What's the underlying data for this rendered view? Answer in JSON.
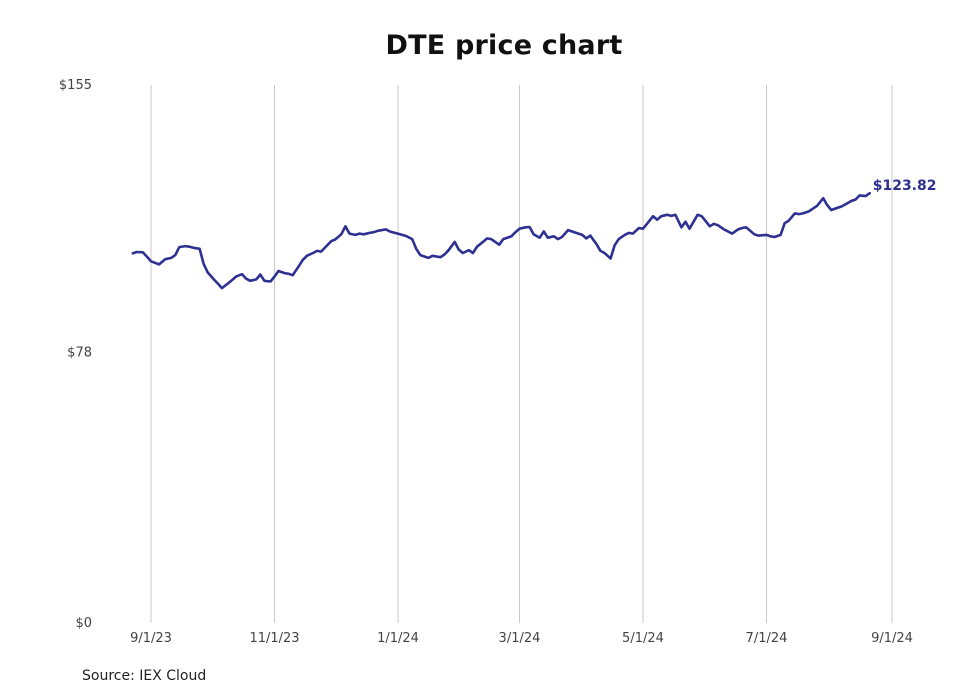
{
  "chart_data": {
    "type": "line",
    "title": "DTE price chart",
    "source": "Source: IEX Cloud",
    "ylim": [
      0,
      155
    ],
    "yticks": [
      {
        "value": 0,
        "label": "$0"
      },
      {
        "value": 78,
        "label": "$78"
      },
      {
        "value": 155,
        "label": "$155"
      }
    ],
    "xlim": [
      "2023-08-24",
      "2024-09-01"
    ],
    "xticks": [
      {
        "date": "2023-09-01",
        "label": "9/1/23"
      },
      {
        "date": "2023-11-01",
        "label": "11/1/23"
      },
      {
        "date": "2024-01-01",
        "label": "1/1/24"
      },
      {
        "date": "2024-03-01",
        "label": "3/1/24"
      },
      {
        "date": "2024-05-01",
        "label": "5/1/24"
      },
      {
        "date": "2024-07-01",
        "label": "7/1/24"
      },
      {
        "date": "2024-09-01",
        "label": "9/1/24"
      }
    ],
    "grid": {
      "vertical": true,
      "horizontal": false
    },
    "series": [
      {
        "color": "#2e3192",
        "last_value_label": "$123.82",
        "points": [
          [
            "2023-08-23",
            106.5
          ],
          [
            "2023-08-25",
            106.9
          ],
          [
            "2023-08-28",
            106.8
          ],
          [
            "2023-08-30",
            105.5
          ],
          [
            "2023-09-01",
            104.2
          ],
          [
            "2023-09-05",
            103.3
          ],
          [
            "2023-09-08",
            104.8
          ],
          [
            "2023-09-11",
            105.2
          ],
          [
            "2023-09-13",
            106.0
          ],
          [
            "2023-09-15",
            108.3
          ],
          [
            "2023-09-18",
            108.6
          ],
          [
            "2023-09-20",
            108.4
          ],
          [
            "2023-09-22",
            108.1
          ],
          [
            "2023-09-25",
            107.8
          ],
          [
            "2023-09-27",
            103.5
          ],
          [
            "2023-09-29",
            101.0
          ],
          [
            "2023-10-02",
            99.0
          ],
          [
            "2023-10-04",
            97.8
          ],
          [
            "2023-10-06",
            96.5
          ],
          [
            "2023-10-09",
            97.8
          ],
          [
            "2023-10-11",
            98.8
          ],
          [
            "2023-10-13",
            99.8
          ],
          [
            "2023-10-16",
            100.5
          ],
          [
            "2023-10-18",
            99.2
          ],
          [
            "2023-10-20",
            98.6
          ],
          [
            "2023-10-23",
            99.0
          ],
          [
            "2023-10-25",
            100.4
          ],
          [
            "2023-10-27",
            98.6
          ],
          [
            "2023-10-30",
            98.4
          ],
          [
            "2023-11-01",
            99.8
          ],
          [
            "2023-11-03",
            101.4
          ],
          [
            "2023-11-06",
            100.8
          ],
          [
            "2023-11-08",
            100.6
          ],
          [
            "2023-11-10",
            100.2
          ],
          [
            "2023-11-13",
            102.8
          ],
          [
            "2023-11-15",
            104.6
          ],
          [
            "2023-11-17",
            105.8
          ],
          [
            "2023-11-20",
            106.6
          ],
          [
            "2023-11-22",
            107.2
          ],
          [
            "2023-11-24",
            107.0
          ],
          [
            "2023-11-27",
            108.8
          ],
          [
            "2023-11-29",
            110.0
          ],
          [
            "2023-12-01",
            110.5
          ],
          [
            "2023-12-04",
            112.0
          ],
          [
            "2023-12-06",
            114.3
          ],
          [
            "2023-12-08",
            112.2
          ],
          [
            "2023-12-11",
            111.8
          ],
          [
            "2023-12-13",
            112.2
          ],
          [
            "2023-12-15",
            112.0
          ],
          [
            "2023-12-18",
            112.4
          ],
          [
            "2023-12-20",
            112.6
          ],
          [
            "2023-12-22",
            113.0
          ],
          [
            "2023-12-26",
            113.4
          ],
          [
            "2023-12-28",
            112.8
          ],
          [
            "2024-01-02",
            112.0
          ],
          [
            "2024-01-05",
            111.5
          ],
          [
            "2024-01-08",
            110.6
          ],
          [
            "2024-01-10",
            107.8
          ],
          [
            "2024-01-12",
            106.0
          ],
          [
            "2024-01-16",
            105.2
          ],
          [
            "2024-01-18",
            105.8
          ],
          [
            "2024-01-22",
            105.4
          ],
          [
            "2024-01-24",
            106.2
          ],
          [
            "2024-01-26",
            107.4
          ],
          [
            "2024-01-29",
            109.8
          ],
          [
            "2024-01-31",
            107.6
          ],
          [
            "2024-02-02",
            106.6
          ],
          [
            "2024-02-05",
            107.4
          ],
          [
            "2024-02-07",
            106.6
          ],
          [
            "2024-02-09",
            108.4
          ],
          [
            "2024-02-12",
            109.8
          ],
          [
            "2024-02-14",
            110.8
          ],
          [
            "2024-02-16",
            110.6
          ],
          [
            "2024-02-20",
            109.0
          ],
          [
            "2024-02-22",
            110.6
          ],
          [
            "2024-02-26",
            111.4
          ],
          [
            "2024-02-28",
            112.6
          ],
          [
            "2024-03-01",
            113.6
          ],
          [
            "2024-03-04",
            114.0
          ],
          [
            "2024-03-06",
            114.1
          ],
          [
            "2024-03-08",
            112.0
          ],
          [
            "2024-03-11",
            111.0
          ],
          [
            "2024-03-13",
            112.8
          ],
          [
            "2024-03-15",
            111.0
          ],
          [
            "2024-03-18",
            111.4
          ],
          [
            "2024-03-20",
            110.6
          ],
          [
            "2024-03-22",
            111.2
          ],
          [
            "2024-03-25",
            113.2
          ],
          [
            "2024-03-27",
            112.8
          ],
          [
            "2024-03-29",
            112.4
          ],
          [
            "2024-04-01",
            111.8
          ],
          [
            "2024-04-03",
            110.8
          ],
          [
            "2024-04-05",
            111.6
          ],
          [
            "2024-04-08",
            109.2
          ],
          [
            "2024-04-10",
            107.2
          ],
          [
            "2024-04-12",
            106.6
          ],
          [
            "2024-04-15",
            105.0
          ],
          [
            "2024-04-17",
            108.8
          ],
          [
            "2024-04-19",
            110.6
          ],
          [
            "2024-04-22",
            111.8
          ],
          [
            "2024-04-24",
            112.4
          ],
          [
            "2024-04-26",
            112.2
          ],
          [
            "2024-04-29",
            113.8
          ],
          [
            "2024-05-01",
            113.6
          ],
          [
            "2024-05-03",
            115.0
          ],
          [
            "2024-05-06",
            117.2
          ],
          [
            "2024-05-08",
            116.2
          ],
          [
            "2024-05-10",
            117.2
          ],
          [
            "2024-05-13",
            117.6
          ],
          [
            "2024-05-15",
            117.3
          ],
          [
            "2024-05-17",
            117.6
          ],
          [
            "2024-05-20",
            114.0
          ],
          [
            "2024-05-22",
            115.6
          ],
          [
            "2024-05-24",
            113.6
          ],
          [
            "2024-05-28",
            117.6
          ],
          [
            "2024-05-30",
            117.2
          ],
          [
            "2024-06-03",
            114.3
          ],
          [
            "2024-06-05",
            115.0
          ],
          [
            "2024-06-07",
            114.6
          ],
          [
            "2024-06-10",
            113.4
          ],
          [
            "2024-06-12",
            112.8
          ],
          [
            "2024-06-14",
            112.2
          ],
          [
            "2024-06-17",
            113.4
          ],
          [
            "2024-06-19",
            113.8
          ],
          [
            "2024-06-21",
            114.0
          ],
          [
            "2024-06-25",
            112.0
          ],
          [
            "2024-06-27",
            111.6
          ],
          [
            "2024-07-01",
            111.8
          ],
          [
            "2024-07-03",
            111.4
          ],
          [
            "2024-07-05",
            111.2
          ],
          [
            "2024-07-08",
            111.8
          ],
          [
            "2024-07-10",
            115.2
          ],
          [
            "2024-07-12",
            115.9
          ],
          [
            "2024-07-15",
            118.0
          ],
          [
            "2024-07-17",
            117.8
          ],
          [
            "2024-07-19",
            118.0
          ],
          [
            "2024-07-22",
            118.6
          ],
          [
            "2024-07-24",
            119.4
          ],
          [
            "2024-07-26",
            120.2
          ],
          [
            "2024-07-29",
            122.4
          ],
          [
            "2024-07-31",
            120.4
          ],
          [
            "2024-08-02",
            119.0
          ],
          [
            "2024-08-05",
            119.6
          ],
          [
            "2024-08-07",
            120.0
          ],
          [
            "2024-08-09",
            120.6
          ],
          [
            "2024-08-12",
            121.6
          ],
          [
            "2024-08-14",
            122.0
          ],
          [
            "2024-08-16",
            123.2
          ],
          [
            "2024-08-19",
            123.0
          ],
          [
            "2024-08-21",
            123.82
          ]
        ]
      }
    ]
  }
}
